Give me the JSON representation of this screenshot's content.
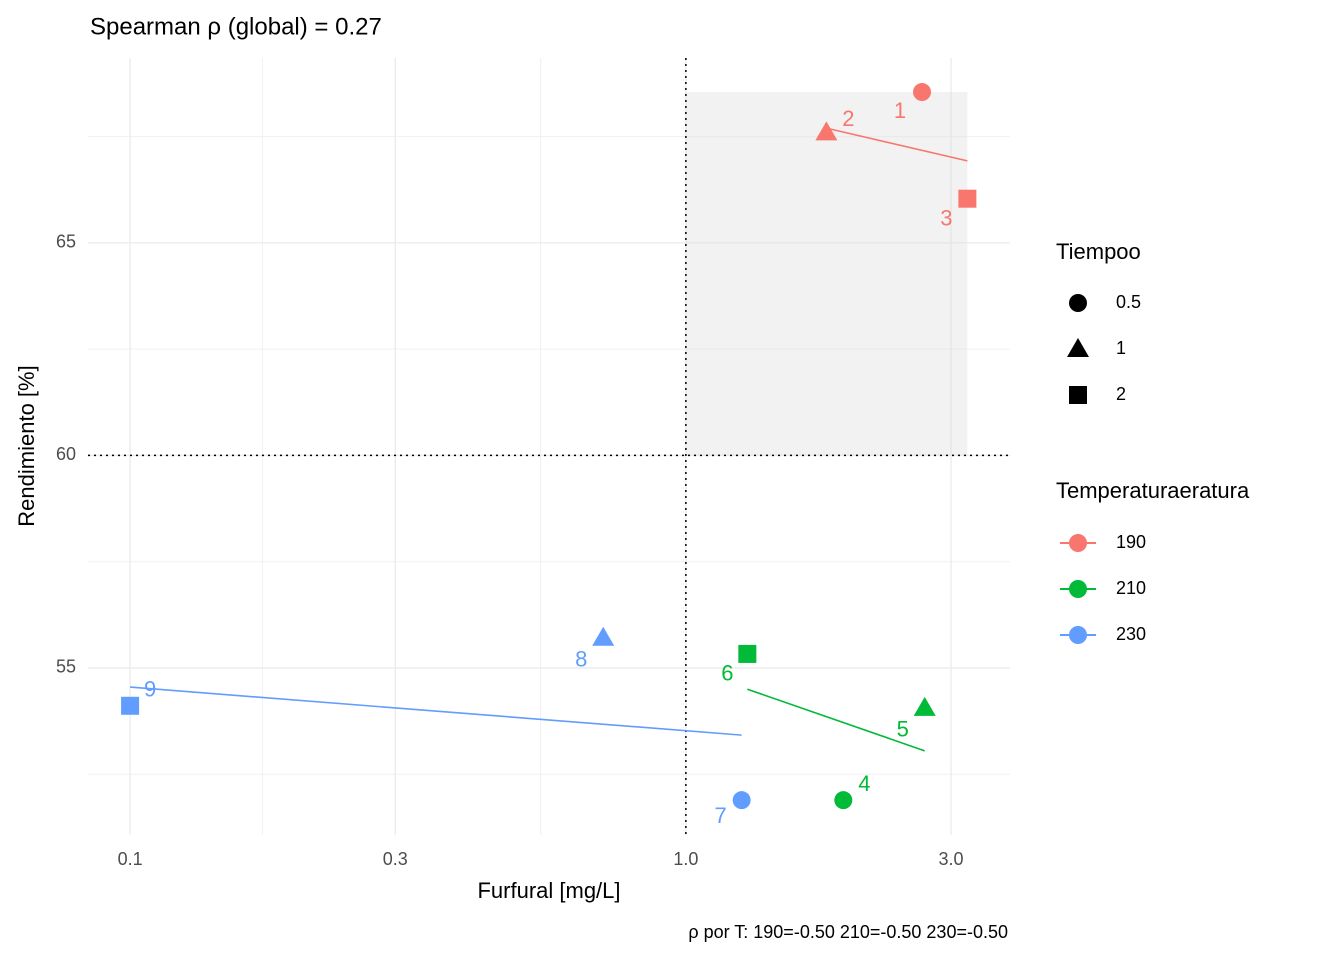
{
  "chart_data": {
    "type": "scatter",
    "title": "Spearman ρ (global) = 0.27",
    "caption": "ρ por T: 190=-0.50  210=-0.50  230=-0.50",
    "x_label": "Furfural [mg/L]",
    "y_label": "Rendimiento [%]",
    "log_x": true,
    "xlim": [
      0.084,
      3.83
    ],
    "ylim": [
      51.07,
      69.35
    ],
    "xticks": [
      0.1,
      0.3,
      {
        "value": 1,
        "label": "1.0"
      },
      {
        "value": 3,
        "label": "3.0"
      }
    ],
    "yticks": [
      55,
      60,
      65
    ],
    "xminor": [
      0.173,
      0.548
    ],
    "yminor": [
      52.5,
      57.5,
      62.5,
      67.5
    ],
    "grid": true,
    "vline": 1,
    "hline": 60,
    "highlight": {
      "x": [
        1,
        3.21
      ],
      "y": [
        60,
        68.55
      ]
    },
    "shape_legend": {
      "title": "Tiempoo",
      "items": [
        "0.5",
        "1",
        "2"
      ],
      "shapes": [
        "circle",
        "triangle",
        "square"
      ]
    },
    "color_legend_title": "Temperaturaeratura",
    "series": [
      {
        "name": "190",
        "color": "#F8766D",
        "labels": [
          "1",
          "2",
          "3"
        ],
        "shape": [
          "0.5",
          "1",
          "2"
        ],
        "x": [
          2.66,
          1.79,
          3.21
        ],
        "y": [
          68.55,
          67.6,
          66.04
        ],
        "fit": {
          "x": [
            1.79,
            3.21
          ],
          "y": [
            67.7,
            66.93
          ]
        }
      },
      {
        "name": "210",
        "color": "#00BA38",
        "labels": [
          "4",
          "5",
          "6"
        ],
        "shape": [
          "0.5",
          "1",
          "2"
        ],
        "x": [
          1.92,
          2.69,
          1.29
        ],
        "y": [
          51.89,
          54.06,
          55.33
        ],
        "fit": {
          "x": [
            1.29,
            2.69
          ],
          "y": [
            54.5,
            53.05
          ]
        }
      },
      {
        "name": "230",
        "color": "#619CFF",
        "labels": [
          "7",
          "8",
          "9"
        ],
        "shape": [
          "0.5",
          "1",
          "2"
        ],
        "x": [
          1.26,
          0.71,
          0.1
        ],
        "y": [
          51.89,
          55.71,
          54.11
        ],
        "fit": {
          "x": [
            0.1,
            1.26
          ],
          "y": [
            54.55,
            53.42
          ]
        }
      }
    ]
  }
}
